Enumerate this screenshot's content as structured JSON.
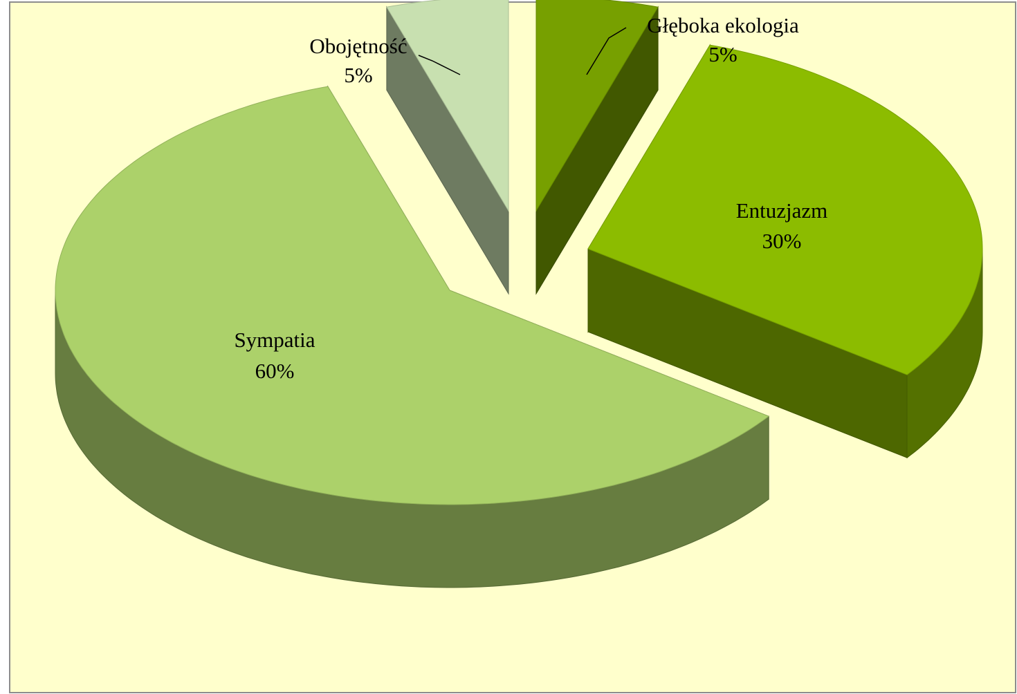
{
  "chart_data": {
    "type": "pie3d",
    "categories": [
      "Głęboka ekologia",
      "Entuzjazm",
      "Sympatia",
      "Obojętność"
    ],
    "values": [
      5,
      30,
      60,
      5
    ],
    "value_labels": [
      "5%",
      "30%",
      "60%",
      "5%"
    ],
    "colors": [
      "#77a000",
      "#8cbc00",
      "#acd16a",
      "#c8e0b0"
    ]
  }
}
